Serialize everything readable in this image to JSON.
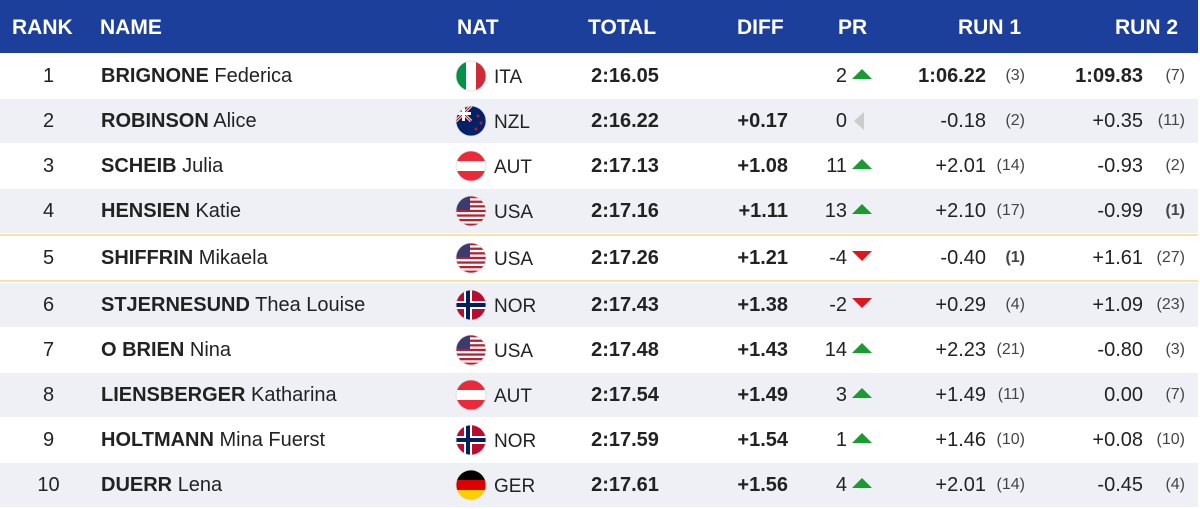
{
  "table": {
    "header": [
      "RANK",
      "NAME",
      "NAT",
      "TOTAL",
      "DIFF",
      "PR",
      "RUN 1",
      "RUN 2"
    ],
    "rows": [
      {
        "rank": "1",
        "surname": "BRIGNONE",
        "firstname": "Federica",
        "nat": "ITA",
        "total": "2:16.05",
        "pr": "2",
        "run1": "1:06.22",
        "run1_rank": "(3)",
        "run2": "1:09.83",
        "run2_rank": "(7)"
      },
      {
        "rank": "2",
        "surname": "ROBINSON",
        "firstname": "Alice",
        "nat": "NZL",
        "total": "2:16.22",
        "diff": "+0.17",
        "pr": "0",
        "run1": "-0.18",
        "run1_rank": "(2)",
        "run2": "+0.35",
        "run2_rank": "(11)"
      },
      {
        "rank": "3",
        "surname": "SCHEIB",
        "firstname": "Julia",
        "nat": "AUT",
        "total": "2:17.13",
        "diff": "+1.08",
        "pr": "11",
        "run1": "+2.01",
        "run1_rank": "(14)",
        "run2": "-0.93",
        "run2_rank": "(2)"
      },
      {
        "rank": "4",
        "surname": "HENSIEN",
        "firstname": "Katie",
        "nat": "USA",
        "total": "2:17.16",
        "diff": "+1.11",
        "pr": "13",
        "run1": "+2.10",
        "run1_rank": "(17)",
        "run2": "-0.99",
        "run2_rank": "(1)"
      },
      {
        "rank": "5",
        "surname": "SHIFFRIN",
        "firstname": "Mikaela",
        "nat": "USA",
        "total": "2:17.26",
        "diff": "+1.21",
        "pr": "-4",
        "run1": "-0.40",
        "run1_rank": "(1)",
        "run2": "+1.61",
        "run2_rank": "(27)"
      },
      {
        "rank": "6",
        "surname": "STJERNESUND",
        "firstname": "Thea Louise",
        "nat": "NOR",
        "total": "2:17.43",
        "diff": "+1.38",
        "pr": "-2",
        "run1": "+0.29",
        "run1_rank": "(4)",
        "run2": "+1.09",
        "run2_rank": "(23)"
      },
      {
        "rank": "7",
        "surname": "O BRIEN",
        "firstname": "Nina",
        "nat": "USA",
        "total": "2:17.48",
        "diff": "+1.43",
        "pr": "14",
        "run1": "+2.23",
        "run1_rank": "(21)",
        "run2": "-0.80",
        "run2_rank": "(3)"
      },
      {
        "rank": "8",
        "surname": "LIENSBERGER",
        "firstname": "Katharina",
        "nat": "AUT",
        "total": "2:17.54",
        "diff": "+1.49",
        "pr": "3",
        "run1": "+1.49",
        "run1_rank": "(11)",
        "run2": "0.00",
        "run2_rank": "(7)"
      },
      {
        "rank": "9",
        "surname": "HOLTMANN",
        "firstname": "Mina Fuerst",
        "nat": "NOR",
        "total": "2:17.59",
        "diff": "+1.54",
        "pr": "1",
        "run1": "+1.46",
        "run1_rank": "(10)",
        "run2": "+0.08",
        "run2_rank": "(10)"
      },
      {
        "rank": "10",
        "surname": "DUERR",
        "firstname": "Lena",
        "nat": "GER",
        "total": "2:17.61",
        "diff": "+1.56",
        "pr": "4",
        "run1": "+2.01",
        "run1_rank": "(14)",
        "run2": "-0.45",
        "run2_rank": "(4)"
      }
    ]
  }
}
